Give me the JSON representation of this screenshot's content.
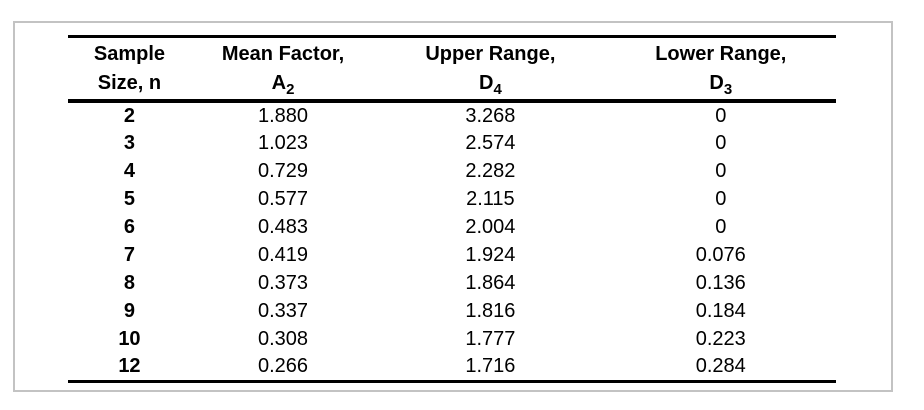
{
  "colors": {
    "outer_border": "#c3c3c3",
    "table_rule": "#000000",
    "text": "#000000",
    "background": "#ffffff"
  },
  "chart_data": {
    "type": "table",
    "columns": [
      {
        "line1": "Sample",
        "line2": "Size, n",
        "symbol": "",
        "sub": ""
      },
      {
        "line1": "Mean Factor,",
        "line2": "",
        "symbol": "A",
        "sub": "2"
      },
      {
        "line1": "Upper Range,",
        "line2": "",
        "symbol": "D",
        "sub": "4"
      },
      {
        "line1": "Lower Range,",
        "line2": "",
        "symbol": "D",
        "sub": "3"
      }
    ],
    "column_labels_flat": [
      "Sample Size, n",
      "Mean Factor, A2",
      "Upper Range, D4",
      "Lower Range, D3"
    ],
    "rows": [
      [
        "2",
        "1.880",
        "3.268",
        "0"
      ],
      [
        "3",
        "1.023",
        "2.574",
        "0"
      ],
      [
        "4",
        "0.729",
        "2.282",
        "0"
      ],
      [
        "5",
        "0.577",
        "2.115",
        "0"
      ],
      [
        "6",
        "0.483",
        "2.004",
        "0"
      ],
      [
        "7",
        "0.419",
        "1.924",
        "0.076"
      ],
      [
        "8",
        "0.373",
        "1.864",
        "0.136"
      ],
      [
        "9",
        "0.337",
        "1.816",
        "0.184"
      ],
      [
        "10",
        "0.308",
        "1.777",
        "0.223"
      ],
      [
        "12",
        "0.266",
        "1.716",
        "0.284"
      ]
    ]
  }
}
